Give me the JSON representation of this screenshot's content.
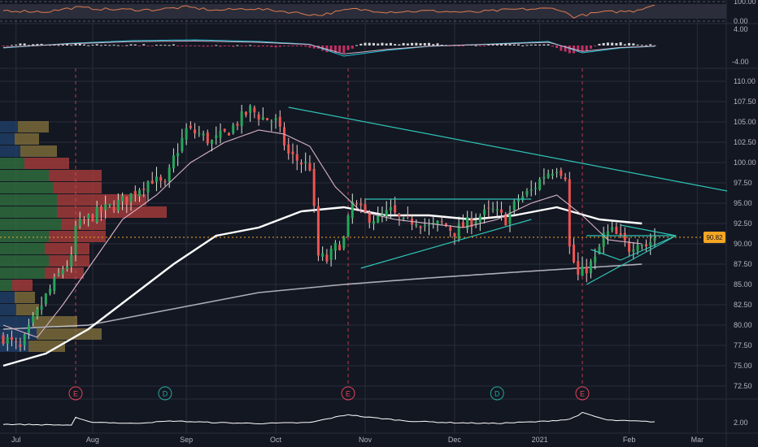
{
  "chart_data": {
    "type": "candlestick",
    "title": "",
    "price_axis": {
      "ticks": [
        "110.00",
        "107.50",
        "105.00",
        "102.50",
        "100.00",
        "97.50",
        "95.00",
        "92.50",
        "90.00",
        "87.50",
        "85.00",
        "82.50",
        "80.00",
        "77.50",
        "75.00",
        "72.50"
      ],
      "ylim": [
        71.0,
        111.5
      ],
      "last_price": 90.8,
      "last_price_label": "90.82"
    },
    "time_axis": {
      "labels": [
        "Jul",
        "Aug",
        "Sep",
        "Oct",
        "Nov",
        "Dec",
        "2021",
        "Feb",
        "Mar"
      ],
      "label_positions": [
        3,
        21,
        43,
        64,
        85,
        106,
        126,
        147,
        163
      ]
    },
    "rsi_panel": {
      "ticks": [
        "100.00",
        "0.00"
      ]
    },
    "macd_panel": {
      "ticks": [
        "4.00",
        "-4.00"
      ]
    },
    "volume_panel": {
      "ticks": [
        "2.00"
      ]
    },
    "event_markers": [
      {
        "index": 17,
        "letter": "E",
        "color": "#e0455a"
      },
      {
        "index": 38,
        "letter": "D",
        "color": "#26a69a"
      },
      {
        "index": 81,
        "letter": "E",
        "color": "#e0455a"
      },
      {
        "index": 116,
        "letter": "D",
        "color": "#26a69a"
      },
      {
        "index": 136,
        "letter": "E",
        "color": "#e0455a"
      }
    ],
    "close_series": [
      {
        "i": 0,
        "v": 78.5
      },
      {
        "i": 4,
        "v": 77.0
      },
      {
        "i": 7,
        "v": 80.5
      },
      {
        "i": 10,
        "v": 83.5
      },
      {
        "i": 14,
        "v": 87.0
      },
      {
        "i": 16,
        "v": 88.0
      },
      {
        "i": 17,
        "v": 92.0
      },
      {
        "i": 21,
        "v": 93.5
      },
      {
        "i": 25,
        "v": 94.5
      },
      {
        "i": 29,
        "v": 95.5
      },
      {
        "i": 32,
        "v": 97.0
      },
      {
        "i": 35,
        "v": 98.0
      },
      {
        "i": 38,
        "v": 97.0
      },
      {
        "i": 40,
        "v": 100.5
      },
      {
        "i": 43,
        "v": 104.0
      },
      {
        "i": 46,
        "v": 103.5
      },
      {
        "i": 49,
        "v": 102.5
      },
      {
        "i": 52,
        "v": 103.5
      },
      {
        "i": 55,
        "v": 105.0
      },
      {
        "i": 58,
        "v": 106.5
      },
      {
        "i": 61,
        "v": 105.5
      },
      {
        "i": 64,
        "v": 105.0
      },
      {
        "i": 67,
        "v": 101.0
      },
      {
        "i": 70,
        "v": 100.0
      },
      {
        "i": 72,
        "v": 99.5
      },
      {
        "i": 74,
        "v": 88.5
      },
      {
        "i": 76,
        "v": 88.0
      },
      {
        "i": 78,
        "v": 89.5
      },
      {
        "i": 80,
        "v": 90.5
      },
      {
        "i": 82,
        "v": 95.0
      },
      {
        "i": 85,
        "v": 93.5
      },
      {
        "i": 88,
        "v": 93.0
      },
      {
        "i": 91,
        "v": 94.0
      },
      {
        "i": 94,
        "v": 92.5
      },
      {
        "i": 97,
        "v": 93.0
      },
      {
        "i": 100,
        "v": 92.0
      },
      {
        "i": 103,
        "v": 92.5
      },
      {
        "i": 106,
        "v": 91.5
      },
      {
        "i": 109,
        "v": 92.5
      },
      {
        "i": 112,
        "v": 93.5
      },
      {
        "i": 115,
        "v": 94.0
      },
      {
        "i": 118,
        "v": 93.0
      },
      {
        "i": 121,
        "v": 95.5
      },
      {
        "i": 124,
        "v": 96.5
      },
      {
        "i": 127,
        "v": 98.5
      },
      {
        "i": 130,
        "v": 99.5
      },
      {
        "i": 132,
        "v": 98.5
      },
      {
        "i": 133,
        "v": 89.5
      },
      {
        "i": 135,
        "v": 86.0
      },
      {
        "i": 137,
        "v": 87.0
      },
      {
        "i": 139,
        "v": 88.0
      },
      {
        "i": 141,
        "v": 91.0
      },
      {
        "i": 143,
        "v": 91.5
      },
      {
        "i": 145,
        "v": 90.5
      },
      {
        "i": 147,
        "v": 89.5
      },
      {
        "i": 149,
        "v": 90.5
      },
      {
        "i": 151,
        "v": 89.8
      },
      {
        "i": 153,
        "v": 90.8
      }
    ],
    "sma_fast": [
      {
        "i": 0,
        "v": 80.0
      },
      {
        "i": 8,
        "v": 78.5
      },
      {
        "i": 14,
        "v": 82.5
      },
      {
        "i": 20,
        "v": 87.0
      },
      {
        "i": 28,
        "v": 93.0
      },
      {
        "i": 36,
        "v": 96.0
      },
      {
        "i": 44,
        "v": 100.0
      },
      {
        "i": 52,
        "v": 102.5
      },
      {
        "i": 60,
        "v": 104.0
      },
      {
        "i": 66,
        "v": 103.5
      },
      {
        "i": 72,
        "v": 102.0
      },
      {
        "i": 78,
        "v": 97.0
      },
      {
        "i": 84,
        "v": 94.0
      },
      {
        "i": 92,
        "v": 93.0
      },
      {
        "i": 100,
        "v": 92.5
      },
      {
        "i": 108,
        "v": 92.0
      },
      {
        "i": 116,
        "v": 93.0
      },
      {
        "i": 124,
        "v": 95.0
      },
      {
        "i": 130,
        "v": 96.0
      },
      {
        "i": 136,
        "v": 93.5
      },
      {
        "i": 142,
        "v": 90.5
      },
      {
        "i": 150,
        "v": 90.0
      }
    ],
    "sma_mid": [
      {
        "i": 0,
        "v": 75.0
      },
      {
        "i": 10,
        "v": 76.5
      },
      {
        "i": 20,
        "v": 79.5
      },
      {
        "i": 30,
        "v": 83.5
      },
      {
        "i": 40,
        "v": 87.5
      },
      {
        "i": 50,
        "v": 91.0
      },
      {
        "i": 60,
        "v": 92.0
      },
      {
        "i": 70,
        "v": 94.0
      },
      {
        "i": 80,
        "v": 94.5
      },
      {
        "i": 90,
        "v": 93.5
      },
      {
        "i": 100,
        "v": 93.5
      },
      {
        "i": 110,
        "v": 93.0
      },
      {
        "i": 120,
        "v": 93.5
      },
      {
        "i": 130,
        "v": 94.5
      },
      {
        "i": 140,
        "v": 93.0
      },
      {
        "i": 150,
        "v": 92.5
      }
    ],
    "sma_slow": [
      {
        "i": 0,
        "v": 79.5
      },
      {
        "i": 20,
        "v": 80.0
      },
      {
        "i": 40,
        "v": 82.0
      },
      {
        "i": 60,
        "v": 84.0
      },
      {
        "i": 80,
        "v": 85.0
      },
      {
        "i": 100,
        "v": 85.8
      },
      {
        "i": 120,
        "v": 86.5
      },
      {
        "i": 135,
        "v": 87.0
      },
      {
        "i": 150,
        "v": 87.5
      }
    ],
    "trendlines": [
      {
        "from": [
          67,
          106.8
        ],
        "to": [
          170,
          96.5
        ]
      },
      {
        "from": [
          84,
          87.0
        ],
        "to": [
          124,
          93.0
        ]
      },
      {
        "from": [
          85,
          95.5
        ],
        "to": [
          124,
          95.5
        ]
      },
      {
        "from": [
          137,
          85.0
        ],
        "to": [
          158,
          91.0
        ]
      },
      {
        "from": [
          137,
          91.0
        ],
        "to": [
          158,
          91.0
        ]
      },
      {
        "from": [
          138,
          89.3
        ],
        "to": [
          145,
          88.0
        ]
      },
      {
        "from": [
          145,
          92.3
        ],
        "to": [
          158,
          91.0
        ]
      },
      {
        "from": [
          145,
          88.0
        ],
        "to": [
          158,
          91.0
        ]
      }
    ],
    "rsi_series": [
      {
        "i": 0,
        "v": 55
      },
      {
        "i": 10,
        "v": 48
      },
      {
        "i": 17,
        "v": 70
      },
      {
        "i": 25,
        "v": 60
      },
      {
        "i": 35,
        "v": 58
      },
      {
        "i": 43,
        "v": 72
      },
      {
        "i": 50,
        "v": 55
      },
      {
        "i": 58,
        "v": 65
      },
      {
        "i": 66,
        "v": 50
      },
      {
        "i": 74,
        "v": 30
      },
      {
        "i": 82,
        "v": 62
      },
      {
        "i": 90,
        "v": 48
      },
      {
        "i": 100,
        "v": 52
      },
      {
        "i": 110,
        "v": 45
      },
      {
        "i": 120,
        "v": 60
      },
      {
        "i": 130,
        "v": 65
      },
      {
        "i": 134,
        "v": 22
      },
      {
        "i": 140,
        "v": 45
      },
      {
        "i": 148,
        "v": 52
      },
      {
        "i": 153,
        "v": 85
      }
    ],
    "macd_line": [
      {
        "i": 0,
        "v": -0.6
      },
      {
        "i": 15,
        "v": 0.5
      },
      {
        "i": 30,
        "v": 1.2
      },
      {
        "i": 45,
        "v": 1.4
      },
      {
        "i": 60,
        "v": 1.0
      },
      {
        "i": 72,
        "v": 0.3
      },
      {
        "i": 80,
        "v": -2.6
      },
      {
        "i": 90,
        "v": -1.2
      },
      {
        "i": 100,
        "v": -0.2
      },
      {
        "i": 115,
        "v": 0.4
      },
      {
        "i": 128,
        "v": 1.0
      },
      {
        "i": 136,
        "v": -1.8
      },
      {
        "i": 145,
        "v": -0.6
      },
      {
        "i": 153,
        "v": -0.2
      }
    ],
    "volume_series": [
      {
        "i": 0,
        "v": 1.9
      },
      {
        "i": 16,
        "v": 1.85
      },
      {
        "i": 17,
        "v": 2.3
      },
      {
        "i": 20,
        "v": 2.05
      },
      {
        "i": 30,
        "v": 1.95
      },
      {
        "i": 40,
        "v": 2.1
      },
      {
        "i": 50,
        "v": 2.0
      },
      {
        "i": 60,
        "v": 1.95
      },
      {
        "i": 72,
        "v": 2.0
      },
      {
        "i": 81,
        "v": 2.5
      },
      {
        "i": 85,
        "v": 2.35
      },
      {
        "i": 95,
        "v": 2.1
      },
      {
        "i": 105,
        "v": 2.0
      },
      {
        "i": 115,
        "v": 1.95
      },
      {
        "i": 125,
        "v": 2.05
      },
      {
        "i": 133,
        "v": 2.2
      },
      {
        "i": 136,
        "v": 2.6
      },
      {
        "i": 142,
        "v": 2.15
      },
      {
        "i": 153,
        "v": 2.05
      }
    ],
    "volume_profile": [
      {
        "price": 104.4,
        "up": 22,
        "down": 38
      },
      {
        "price": 102.9,
        "up": 18,
        "down": 30
      },
      {
        "price": 101.4,
        "up": 25,
        "down": 45
      },
      {
        "price": 99.9,
        "up": 30,
        "down": 55
      },
      {
        "price": 98.4,
        "up": 60,
        "down": 65
      },
      {
        "price": 96.9,
        "up": 65,
        "down": 60
      },
      {
        "price": 95.4,
        "up": 70,
        "down": 110
      },
      {
        "price": 93.9,
        "up": 70,
        "down": 135
      },
      {
        "price": 92.4,
        "up": 75,
        "down": 55
      },
      {
        "price": 90.9,
        "up": 60,
        "down": 70
      },
      {
        "price": 89.4,
        "up": 55,
        "down": 55
      },
      {
        "price": 87.9,
        "up": 60,
        "down": 50
      },
      {
        "price": 86.4,
        "up": 55,
        "down": 48
      },
      {
        "price": 84.9,
        "up": 15,
        "down": 25
      },
      {
        "price": 83.4,
        "up": 18,
        "down": 25
      },
      {
        "price": 81.9,
        "up": 20,
        "down": 28
      },
      {
        "price": 80.4,
        "up": 40,
        "down": 55
      },
      {
        "price": 78.9,
        "up": 45,
        "down": 80
      },
      {
        "price": 77.4,
        "up": 35,
        "down": 45
      }
    ]
  }
}
